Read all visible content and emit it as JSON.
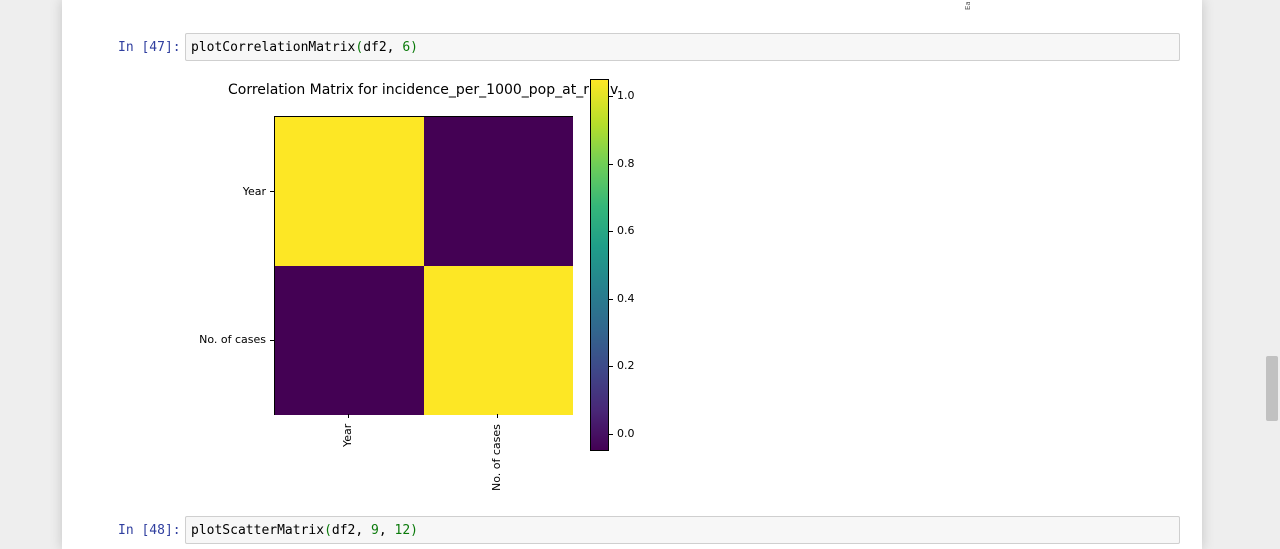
{
  "notebook": {
    "cut_off_label": "Ea",
    "cells": [
      {
        "prompt": "In [47]:",
        "code": {
          "func": "plotCorrelationMatrix",
          "open": "(",
          "arg1": "df2, ",
          "arg2": "6",
          "close": ")"
        }
      },
      {
        "prompt": "In [48]:",
        "code": {
          "func": "plotScatterMatrix",
          "open": "(",
          "arg1": "df2, ",
          "arg2": "9",
          "sep": ", ",
          "arg3": "12",
          "close": ")"
        }
      }
    ]
  },
  "colors": {
    "high": "#fde725",
    "low": "#440154",
    "prompt": "#303f9f"
  },
  "chart_data": {
    "type": "heatmap",
    "title": "Correlation Matrix for incidence_per_1000_pop_at_risk.csv",
    "title_visible": "Correlation Matrix for incidence_per_1000_pop_at_risk",
    "title_tail": "v",
    "row_labels": [
      "Year",
      "No. of cases"
    ],
    "col_labels": [
      "Year",
      "No. of cases"
    ],
    "values": [
      [
        1.0,
        0.0
      ],
      [
        0.0,
        1.0
      ]
    ],
    "colormap": "viridis",
    "colorbar": {
      "ticks": [
        "1.0",
        "0.8",
        "0.6",
        "0.4",
        "0.2",
        "0.0"
      ],
      "range": [
        -0.05,
        1.05
      ]
    }
  }
}
